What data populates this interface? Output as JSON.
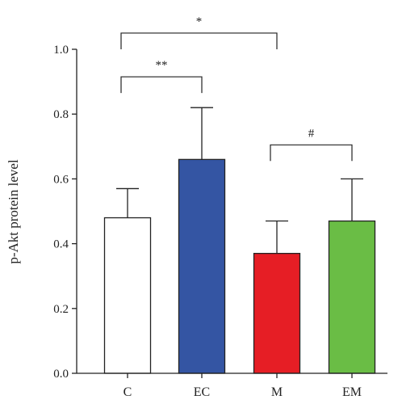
{
  "chart_data": {
    "type": "bar",
    "ylabel": "p-Akt protein level",
    "xlabel": "",
    "ylim": [
      0,
      1.0
    ],
    "yticks": [
      "0.0",
      "0.2",
      "0.4",
      "0.6",
      "0.8",
      "1.0"
    ],
    "categories": [
      "C",
      "EC",
      "M",
      "EM"
    ],
    "values": [
      0.48,
      0.66,
      0.37,
      0.47
    ],
    "errors": [
      0.09,
      0.16,
      0.1,
      0.13
    ],
    "colors": [
      "#ffffff",
      "#3455a3",
      "#e61e25",
      "#6abd45"
    ],
    "significance": [
      {
        "from": "C",
        "to": "M",
        "label": "*",
        "y": 1.05
      },
      {
        "from": "C",
        "to": "EC",
        "label": "**",
        "y": 0.915
      },
      {
        "from": "M",
        "to": "EM",
        "label": "#",
        "y": 0.705
      }
    ]
  }
}
